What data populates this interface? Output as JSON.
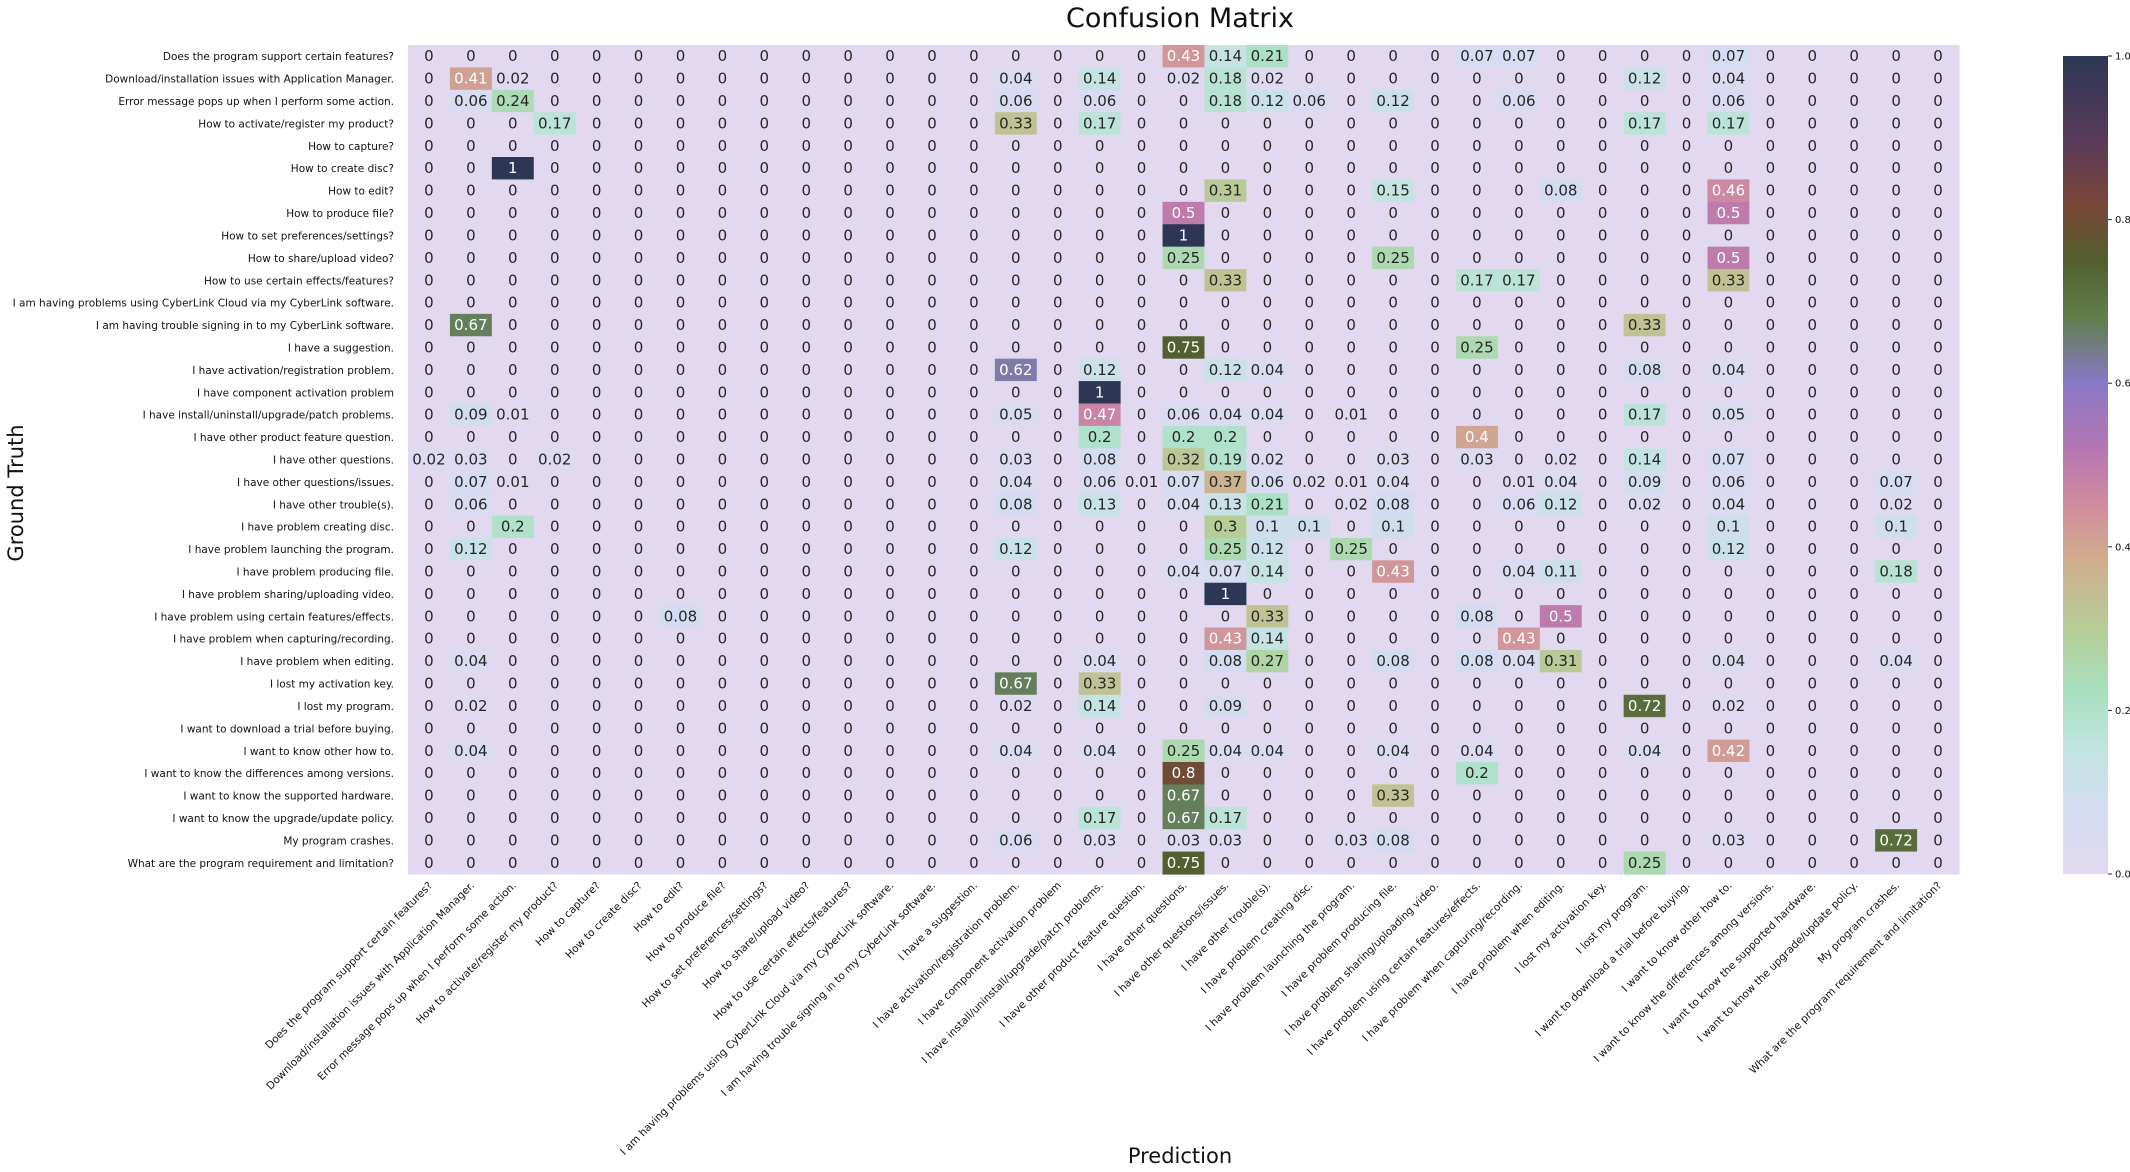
{
  "chart_data": {
    "type": "heatmap",
    "title": "Confusion Matrix",
    "xlabel": "Prediction",
    "ylabel": "Ground Truth",
    "labels": [
      "Does the program support certain features?",
      "Download/installation issues with Application Manager.",
      "Error message pops up when I perform some action.",
      "How to activate/register my product?",
      "How to capture?",
      "How to create disc?",
      "How to edit?",
      "How to produce file?",
      "How to set preferences/settings?",
      "How to share/upload video?",
      "How to use certain effects/features?",
      "I am having problems using CyberLink Cloud via my CyberLink software.",
      "I am having trouble signing in to my CyberLink software.",
      "I have a suggestion.",
      "I have activation/registration problem.",
      "I have component activation problem",
      "I have install/uninstall/upgrade/patch problems.",
      "I have other product feature question.",
      "I have other questions.",
      "I have other questions/issues.",
      "I have other trouble(s).",
      "I have problem creating disc.",
      "I have problem launching the program.",
      "I have problem producing file.",
      "I have problem sharing/uploading video.",
      "I have problem using certain features/effects.",
      "I have problem when capturing/recording.",
      "I have problem when editing.",
      "I lost my activation key.",
      "I lost my program.",
      "I want to download a trial before buying.",
      "I want to know other how to.",
      "I want to know the differences among versions.",
      "I want to know the supported hardware.",
      "I want to know the upgrade/update policy.",
      "My program crashes.",
      "What are the program requirement and limitation?"
    ],
    "matrix": [
      [
        0,
        0,
        0,
        0,
        0,
        0,
        0,
        0,
        0,
        0,
        0,
        0,
        0,
        0,
        0,
        0,
        0,
        0,
        0.43,
        0.14,
        0.21,
        0,
        0,
        0,
        0,
        0.07,
        0.07,
        0,
        0,
        0,
        0,
        0.07,
        0,
        0,
        0,
        0,
        0
      ],
      [
        0,
        0.41,
        0.02,
        0,
        0,
        0,
        0,
        0,
        0,
        0,
        0,
        0,
        0,
        0,
        0.04,
        0,
        0.14,
        0,
        0.02,
        0.18,
        0.02,
        0,
        0,
        0,
        0,
        0,
        0,
        0,
        0,
        0.12,
        0,
        0.04,
        0,
        0,
        0,
        0,
        0
      ],
      [
        0,
        0.06,
        0.24,
        0,
        0,
        0,
        0,
        0,
        0,
        0,
        0,
        0,
        0,
        0,
        0.06,
        0,
        0.06,
        0,
        0,
        0.18,
        0.12,
        0.06,
        0,
        0.12,
        0,
        0,
        0.06,
        0,
        0,
        0,
        0,
        0.06,
        0,
        0,
        0,
        0,
        0
      ],
      [
        0,
        0,
        0,
        0.17,
        0,
        0,
        0,
        0,
        0,
        0,
        0,
        0,
        0,
        0,
        0.33,
        0,
        0.17,
        0,
        0,
        0,
        0,
        0,
        0,
        0,
        0,
        0,
        0,
        0,
        0,
        0.17,
        0,
        0.17,
        0,
        0,
        0,
        0,
        0
      ],
      [
        0,
        0,
        0,
        0,
        0,
        0,
        0,
        0,
        0,
        0,
        0,
        0,
        0,
        0,
        0,
        0,
        0,
        0,
        0,
        0,
        0,
        0,
        0,
        0,
        0,
        0,
        0,
        0,
        0,
        0,
        0,
        0,
        0,
        0,
        0,
        0,
        0
      ],
      [
        0,
        0,
        1,
        0,
        0,
        0,
        0,
        0,
        0,
        0,
        0,
        0,
        0,
        0,
        0,
        0,
        0,
        0,
        0,
        0,
        0,
        0,
        0,
        0,
        0,
        0,
        0,
        0,
        0,
        0,
        0,
        0,
        0,
        0,
        0,
        0,
        0
      ],
      [
        0,
        0,
        0,
        0,
        0,
        0,
        0,
        0,
        0,
        0,
        0,
        0,
        0,
        0,
        0,
        0,
        0,
        0,
        0,
        0.31,
        0,
        0,
        0,
        0.15,
        0,
        0,
        0,
        0.08,
        0,
        0,
        0,
        0.46,
        0,
        0,
        0,
        0,
        0
      ],
      [
        0,
        0,
        0,
        0,
        0,
        0,
        0,
        0,
        0,
        0,
        0,
        0,
        0,
        0,
        0,
        0,
        0,
        0,
        0.5,
        0,
        0,
        0,
        0,
        0,
        0,
        0,
        0,
        0,
        0,
        0,
        0,
        0.5,
        0,
        0,
        0,
        0,
        0
      ],
      [
        0,
        0,
        0,
        0,
        0,
        0,
        0,
        0,
        0,
        0,
        0,
        0,
        0,
        0,
        0,
        0,
        0,
        0,
        1,
        0,
        0,
        0,
        0,
        0,
        0,
        0,
        0,
        0,
        0,
        0,
        0,
        0,
        0,
        0,
        0,
        0,
        0
      ],
      [
        0,
        0,
        0,
        0,
        0,
        0,
        0,
        0,
        0,
        0,
        0,
        0,
        0,
        0,
        0,
        0,
        0,
        0,
        0.25,
        0,
        0,
        0,
        0,
        0.25,
        0,
        0,
        0,
        0,
        0,
        0,
        0,
        0.5,
        0,
        0,
        0,
        0,
        0
      ],
      [
        0,
        0,
        0,
        0,
        0,
        0,
        0,
        0,
        0,
        0,
        0,
        0,
        0,
        0,
        0,
        0,
        0,
        0,
        0,
        0.33,
        0,
        0,
        0,
        0,
        0,
        0.17,
        0.17,
        0,
        0,
        0,
        0,
        0.33,
        0,
        0,
        0,
        0,
        0
      ],
      [
        0,
        0,
        0,
        0,
        0,
        0,
        0,
        0,
        0,
        0,
        0,
        0,
        0,
        0,
        0,
        0,
        0,
        0,
        0,
        0,
        0,
        0,
        0,
        0,
        0,
        0,
        0,
        0,
        0,
        0,
        0,
        0,
        0,
        0,
        0,
        0,
        0
      ],
      [
        0,
        0.67,
        0,
        0,
        0,
        0,
        0,
        0,
        0,
        0,
        0,
        0,
        0,
        0,
        0,
        0,
        0,
        0,
        0,
        0,
        0,
        0,
        0,
        0,
        0,
        0,
        0,
        0,
        0,
        0.33,
        0,
        0,
        0,
        0,
        0,
        0,
        0
      ],
      [
        0,
        0,
        0,
        0,
        0,
        0,
        0,
        0,
        0,
        0,
        0,
        0,
        0,
        0,
        0,
        0,
        0,
        0,
        0.75,
        0,
        0,
        0,
        0,
        0,
        0,
        0.25,
        0,
        0,
        0,
        0,
        0,
        0,
        0,
        0,
        0,
        0,
        0
      ],
      [
        0,
        0,
        0,
        0,
        0,
        0,
        0,
        0,
        0,
        0,
        0,
        0,
        0,
        0,
        0.62,
        0,
        0.12,
        0,
        0,
        0.12,
        0.04,
        0,
        0,
        0,
        0,
        0,
        0,
        0,
        0,
        0.08,
        0,
        0.04,
        0,
        0,
        0,
        0,
        0
      ],
      [
        0,
        0,
        0,
        0,
        0,
        0,
        0,
        0,
        0,
        0,
        0,
        0,
        0,
        0,
        0,
        0,
        1,
        0,
        0,
        0,
        0,
        0,
        0,
        0,
        0,
        0,
        0,
        0,
        0,
        0,
        0,
        0,
        0,
        0,
        0,
        0,
        0
      ],
      [
        0,
        0.09,
        0.01,
        0,
        0,
        0,
        0,
        0,
        0,
        0,
        0,
        0,
        0,
        0,
        0.05,
        0,
        0.47,
        0,
        0.06,
        0.04,
        0.04,
        0,
        0.01,
        0,
        0,
        0,
        0,
        0,
        0,
        0.17,
        0,
        0.05,
        0,
        0,
        0,
        0,
        0
      ],
      [
        0,
        0,
        0,
        0,
        0,
        0,
        0,
        0,
        0,
        0,
        0,
        0,
        0,
        0,
        0,
        0,
        0.2,
        0,
        0.2,
        0.2,
        0,
        0,
        0,
        0,
        0,
        0.4,
        0,
        0,
        0,
        0,
        0,
        0,
        0,
        0,
        0,
        0,
        0
      ],
      [
        0.02,
        0.03,
        0,
        0.02,
        0,
        0,
        0,
        0,
        0,
        0,
        0,
        0,
        0,
        0,
        0.03,
        0,
        0.08,
        0,
        0.32,
        0.19,
        0.02,
        0,
        0,
        0.03,
        0,
        0.03,
        0,
        0.02,
        0,
        0.14,
        0,
        0.07,
        0,
        0,
        0,
        0,
        0
      ],
      [
        0,
        0.07,
        0.01,
        0,
        0,
        0,
        0,
        0,
        0,
        0,
        0,
        0,
        0,
        0,
        0.04,
        0,
        0.06,
        0.01,
        0.07,
        0.37,
        0.06,
        0.02,
        0.01,
        0.04,
        0,
        0,
        0.01,
        0.04,
        0,
        0.09,
        0,
        0.06,
        0,
        0,
        0,
        0.07,
        0
      ],
      [
        0,
        0.06,
        0,
        0,
        0,
        0,
        0,
        0,
        0,
        0,
        0,
        0,
        0,
        0,
        0.08,
        0,
        0.13,
        0,
        0.04,
        0.13,
        0.21,
        0,
        0.02,
        0.08,
        0,
        0,
        0.06,
        0.12,
        0,
        0.02,
        0,
        0.04,
        0,
        0,
        0,
        0.02,
        0
      ],
      [
        0,
        0,
        0.2,
        0,
        0,
        0,
        0,
        0,
        0,
        0,
        0,
        0,
        0,
        0,
        0,
        0,
        0,
        0,
        0,
        0.3,
        0.1,
        0.1,
        0,
        0.1,
        0,
        0,
        0,
        0,
        0,
        0,
        0,
        0.1,
        0,
        0,
        0,
        0.1,
        0
      ],
      [
        0,
        0.12,
        0,
        0,
        0,
        0,
        0,
        0,
        0,
        0,
        0,
        0,
        0,
        0,
        0.12,
        0,
        0,
        0,
        0,
        0.25,
        0.12,
        0,
        0.25,
        0,
        0,
        0,
        0,
        0,
        0,
        0,
        0,
        0.12,
        0,
        0,
        0,
        0,
        0
      ],
      [
        0,
        0,
        0,
        0,
        0,
        0,
        0,
        0,
        0,
        0,
        0,
        0,
        0,
        0,
        0,
        0,
        0,
        0,
        0.04,
        0.07,
        0.14,
        0,
        0,
        0.43,
        0,
        0,
        0.04,
        0.11,
        0,
        0,
        0,
        0,
        0,
        0,
        0,
        0.18,
        0
      ],
      [
        0,
        0,
        0,
        0,
        0,
        0,
        0,
        0,
        0,
        0,
        0,
        0,
        0,
        0,
        0,
        0,
        0,
        0,
        0,
        1,
        0,
        0,
        0,
        0,
        0,
        0,
        0,
        0,
        0,
        0,
        0,
        0,
        0,
        0,
        0,
        0,
        0
      ],
      [
        0,
        0,
        0,
        0,
        0,
        0,
        0.08,
        0,
        0,
        0,
        0,
        0,
        0,
        0,
        0,
        0,
        0,
        0,
        0,
        0,
        0.33,
        0,
        0,
        0,
        0,
        0.08,
        0,
        0.5,
        0,
        0,
        0,
        0,
        0,
        0,
        0,
        0,
        0
      ],
      [
        0,
        0,
        0,
        0,
        0,
        0,
        0,
        0,
        0,
        0,
        0,
        0,
        0,
        0,
        0,
        0,
        0,
        0,
        0,
        0.43,
        0.14,
        0,
        0,
        0,
        0,
        0,
        0.43,
        0,
        0,
        0,
        0,
        0,
        0,
        0,
        0,
        0,
        0
      ],
      [
        0,
        0.04,
        0,
        0,
        0,
        0,
        0,
        0,
        0,
        0,
        0,
        0,
        0,
        0,
        0,
        0,
        0.04,
        0,
        0,
        0.08,
        0.27,
        0,
        0,
        0.08,
        0,
        0.08,
        0.04,
        0.31,
        0,
        0,
        0,
        0.04,
        0,
        0,
        0,
        0.04,
        0
      ],
      [
        0,
        0,
        0,
        0,
        0,
        0,
        0,
        0,
        0,
        0,
        0,
        0,
        0,
        0,
        0.67,
        0,
        0.33,
        0,
        0,
        0,
        0,
        0,
        0,
        0,
        0,
        0,
        0,
        0,
        0,
        0,
        0,
        0,
        0,
        0,
        0,
        0,
        0
      ],
      [
        0,
        0.02,
        0,
        0,
        0,
        0,
        0,
        0,
        0,
        0,
        0,
        0,
        0,
        0,
        0.02,
        0,
        0.14,
        0,
        0,
        0.09,
        0,
        0,
        0,
        0,
        0,
        0,
        0,
        0,
        0,
        0.72,
        0,
        0.02,
        0,
        0,
        0,
        0,
        0
      ],
      [
        0,
        0,
        0,
        0,
        0,
        0,
        0,
        0,
        0,
        0,
        0,
        0,
        0,
        0,
        0,
        0,
        0,
        0,
        0,
        0,
        0,
        0,
        0,
        0,
        0,
        0,
        0,
        0,
        0,
        0,
        0,
        0,
        0,
        0,
        0,
        0,
        0
      ],
      [
        0,
        0.04,
        0,
        0,
        0,
        0,
        0,
        0,
        0,
        0,
        0,
        0,
        0,
        0,
        0.04,
        0,
        0.04,
        0,
        0.25,
        0.04,
        0.04,
        0,
        0,
        0.04,
        0,
        0.04,
        0,
        0,
        0,
        0.04,
        0,
        0.42,
        0,
        0,
        0,
        0,
        0
      ],
      [
        0,
        0,
        0,
        0,
        0,
        0,
        0,
        0,
        0,
        0,
        0,
        0,
        0,
        0,
        0,
        0,
        0,
        0,
        0.8,
        0,
        0,
        0,
        0,
        0,
        0,
        0.2,
        0,
        0,
        0,
        0,
        0,
        0,
        0,
        0,
        0,
        0,
        0
      ],
      [
        0,
        0,
        0,
        0,
        0,
        0,
        0,
        0,
        0,
        0,
        0,
        0,
        0,
        0,
        0,
        0,
        0,
        0,
        0.67,
        0,
        0,
        0,
        0,
        0.33,
        0,
        0,
        0,
        0,
        0,
        0,
        0,
        0,
        0,
        0,
        0,
        0,
        0
      ],
      [
        0,
        0,
        0,
        0,
        0,
        0,
        0,
        0,
        0,
        0,
        0,
        0,
        0,
        0,
        0,
        0,
        0.17,
        0,
        0.67,
        0.17,
        0,
        0,
        0,
        0,
        0,
        0,
        0,
        0,
        0,
        0,
        0,
        0,
        0,
        0,
        0,
        0,
        0
      ],
      [
        0,
        0,
        0,
        0,
        0,
        0,
        0,
        0,
        0,
        0,
        0,
        0,
        0,
        0,
        0.06,
        0,
        0.03,
        0,
        0.03,
        0.03,
        0,
        0,
        0.03,
        0.08,
        0,
        0,
        0,
        0,
        0,
        0,
        0,
        0.03,
        0,
        0,
        0,
        0.72,
        0
      ],
      [
        0,
        0,
        0,
        0,
        0,
        0,
        0,
        0,
        0,
        0,
        0,
        0,
        0,
        0,
        0,
        0,
        0,
        0,
        0.75,
        0,
        0,
        0,
        0,
        0,
        0,
        0,
        0,
        0,
        0,
        0.25,
        0,
        0,
        0,
        0,
        0,
        0,
        0
      ]
    ],
    "colorbar": {
      "min": 0,
      "max": 1,
      "ticks": [
        "0.0",
        "0.2",
        "0.4",
        "0.6",
        "0.8",
        "1.0"
      ]
    },
    "colormap": "cubehelix_r"
  }
}
